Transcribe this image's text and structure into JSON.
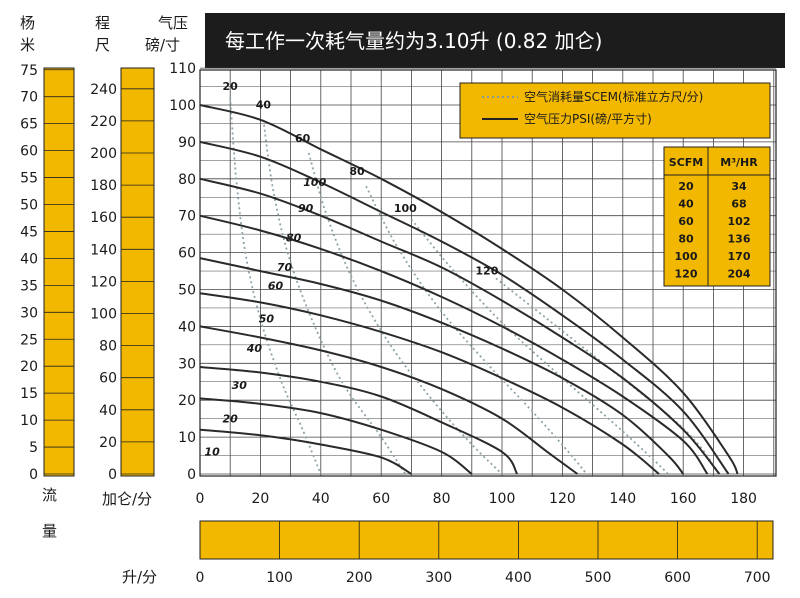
{
  "chart_data": {
    "type": "line",
    "title": "每工作一次耗气量约为3.10升 (0.82 加仑)",
    "left_headers": {
      "head_m": [
        "杨",
        "米"
      ],
      "head_ft": [
        "程",
        "尺"
      ],
      "head_psi": [
        "气压",
        "磅/寸"
      ]
    },
    "x_gpm": {
      "label": "加仑/分",
      "ticks": [
        0,
        20,
        40,
        60,
        80,
        100,
        120,
        140,
        160,
        180
      ],
      "range": [
        0,
        190
      ]
    },
    "x_lpm": {
      "label": "升/分",
      "ticks": [
        0,
        100,
        200,
        300,
        400,
        500,
        600,
        700
      ]
    },
    "y_psi": {
      "ticks": [
        0,
        10,
        20,
        30,
        40,
        50,
        60,
        70,
        80,
        90,
        100,
        110
      ],
      "range": [
        0,
        110
      ]
    },
    "y_ft": {
      "ticks": [
        0,
        20,
        40,
        60,
        80,
        100,
        120,
        140,
        160,
        180,
        200,
        220,
        240
      ]
    },
    "y_m": {
      "ticks": [
        0,
        5,
        10,
        15,
        20,
        25,
        30,
        35,
        40,
        45,
        50,
        55,
        60,
        65,
        70,
        75
      ]
    },
    "flow_label": [
      "流",
      "量"
    ],
    "legend": {
      "scfm_label": "空气消耗量SCEM(标准立方尺/分)",
      "psi_label": "空气压力PSI(磅/平方寸)"
    },
    "conversion_table": {
      "headers": [
        "SCFM",
        "M³/HR"
      ],
      "rows": [
        [
          "20",
          "34"
        ],
        [
          "40",
          "68"
        ],
        [
          "60",
          "102"
        ],
        [
          "80",
          "136"
        ],
        [
          "100",
          "170"
        ],
        [
          "120",
          "204"
        ]
      ]
    },
    "pressure_series": [
      {
        "name": "10",
        "label_at": [
          4,
          5
        ],
        "points": [
          [
            0,
            12
          ],
          [
            20,
            10.5
          ],
          [
            40,
            8
          ],
          [
            60,
            4.5
          ],
          [
            70,
            0
          ]
        ]
      },
      {
        "name": "20",
        "label_at": [
          10,
          14
        ],
        "points": [
          [
            0,
            20.5
          ],
          [
            20,
            19
          ],
          [
            40,
            16.5
          ],
          [
            60,
            12
          ],
          [
            80,
            6
          ],
          [
            90,
            0
          ]
        ]
      },
      {
        "name": "30",
        "label_at": [
          13,
          23
        ],
        "points": [
          [
            0,
            29
          ],
          [
            20,
            27.5
          ],
          [
            40,
            25
          ],
          [
            60,
            21
          ],
          [
            80,
            14
          ],
          [
            100,
            6
          ],
          [
            105,
            0
          ]
        ]
      },
      {
        "name": "40",
        "label_at": [
          18,
          33
        ],
        "points": [
          [
            0,
            40
          ],
          [
            20,
            37
          ],
          [
            40,
            33.5
          ],
          [
            60,
            29
          ],
          [
            80,
            23
          ],
          [
            100,
            15
          ],
          [
            115,
            6
          ],
          [
            125,
            0
          ]
        ]
      },
      {
        "name": "50",
        "label_at": [
          22,
          41
        ],
        "points": [
          [
            0,
            49
          ],
          [
            20,
            46.5
          ],
          [
            40,
            43
          ],
          [
            60,
            38.5
          ],
          [
            80,
            33
          ],
          [
            100,
            26
          ],
          [
            120,
            18
          ],
          [
            140,
            8
          ],
          [
            152,
            0
          ]
        ]
      },
      {
        "name": "60",
        "label_at": [
          25,
          50
        ],
        "points": [
          [
            0,
            58.5
          ],
          [
            20,
            55
          ],
          [
            40,
            51.5
          ],
          [
            60,
            47
          ],
          [
            80,
            41
          ],
          [
            100,
            34
          ],
          [
            120,
            26
          ],
          [
            140,
            16
          ],
          [
            155,
            5
          ],
          [
            160,
            0
          ]
        ]
      },
      {
        "name": "70",
        "label_at": [
          28,
          55
        ],
        "points": [
          [
            0,
            70
          ],
          [
            20,
            66
          ],
          [
            40,
            61
          ],
          [
            60,
            55
          ],
          [
            80,
            48
          ],
          [
            100,
            40
          ],
          [
            120,
            31
          ],
          [
            140,
            21
          ],
          [
            160,
            9
          ],
          [
            168,
            0
          ]
        ]
      },
      {
        "name": "80",
        "label_at": [
          31,
          63
        ],
        "points": [
          [
            0,
            80
          ],
          [
            20,
            76
          ],
          [
            40,
            70
          ],
          [
            60,
            63
          ],
          [
            80,
            56
          ],
          [
            100,
            47
          ],
          [
            120,
            37
          ],
          [
            140,
            26
          ],
          [
            160,
            12
          ],
          [
            172,
            0
          ]
        ]
      },
      {
        "name": "90",
        "label_at": [
          35,
          71
        ],
        "points": [
          [
            0,
            90
          ],
          [
            20,
            86
          ],
          [
            40,
            79
          ],
          [
            60,
            71
          ],
          [
            80,
            63
          ],
          [
            100,
            54
          ],
          [
            120,
            43
          ],
          [
            140,
            31
          ],
          [
            160,
            17
          ],
          [
            175,
            0
          ]
        ]
      },
      {
        "name": "100",
        "label_at": [
          38,
          78
        ],
        "points": [
          [
            0,
            100
          ],
          [
            20,
            96
          ],
          [
            40,
            88
          ],
          [
            60,
            80
          ],
          [
            80,
            71
          ],
          [
            100,
            61
          ],
          [
            120,
            50
          ],
          [
            140,
            37
          ],
          [
            160,
            22
          ],
          [
            175,
            5
          ],
          [
            178,
            0
          ]
        ]
      }
    ],
    "scfm_series": [
      {
        "name": "20",
        "label_at": [
          10,
          104
        ],
        "points": [
          [
            10,
            102
          ],
          [
            12,
            80
          ],
          [
            15,
            60
          ],
          [
            20,
            42
          ],
          [
            27,
            25
          ],
          [
            34,
            12
          ],
          [
            40,
            0
          ]
        ]
      },
      {
        "name": "40",
        "label_at": [
          21,
          99
        ],
        "points": [
          [
            21,
            96
          ],
          [
            24,
            78
          ],
          [
            29,
            60
          ],
          [
            37,
            42
          ],
          [
            47,
            25
          ],
          [
            60,
            10
          ],
          [
            68,
            0
          ]
        ]
      },
      {
        "name": "60",
        "label_at": [
          34,
          90
        ],
        "points": [
          [
            36,
            87
          ],
          [
            42,
            70
          ],
          [
            51,
            52
          ],
          [
            63,
            35
          ],
          [
            77,
            20
          ],
          [
            90,
            8
          ],
          [
            100,
            0
          ]
        ]
      },
      {
        "name": "80",
        "label_at": [
          52,
          81
        ],
        "points": [
          [
            55,
            78
          ],
          [
            65,
            62
          ],
          [
            79,
            45
          ],
          [
            95,
            30
          ],
          [
            110,
            17
          ],
          [
            122,
            6
          ],
          [
            128,
            0
          ]
        ]
      },
      {
        "name": "100",
        "label_at": [
          68,
          71
        ],
        "points": [
          [
            70,
            69
          ],
          [
            83,
            56
          ],
          [
            100,
            41
          ],
          [
            120,
            26
          ],
          [
            138,
            13
          ],
          [
            150,
            4
          ],
          [
            155,
            0
          ]
        ]
      },
      {
        "name": "120",
        "label_at": [
          95,
          54
        ],
        "points": [
          [
            98,
            53
          ],
          [
            115,
            42
          ],
          [
            135,
            29
          ],
          [
            155,
            16
          ],
          [
            165,
            8
          ],
          [
            172,
            0
          ]
        ]
      }
    ]
  }
}
